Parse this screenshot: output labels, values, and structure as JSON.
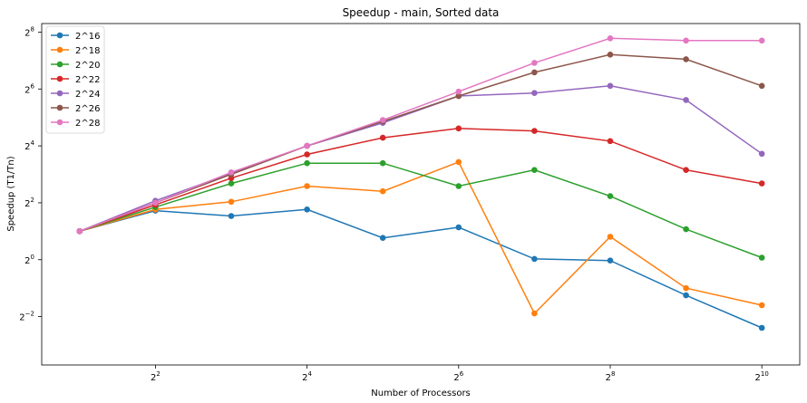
{
  "chart_data": {
    "type": "line",
    "title": "Speedup - main, Sorted data",
    "xlabel": "Number of Processors",
    "ylabel": "Speedup (T1/Tn)",
    "x_scale": "log2",
    "y_scale": "log2",
    "x": [
      2,
      4,
      8,
      16,
      32,
      64,
      128,
      256,
      512,
      1024
    ],
    "x_exponent_range": [
      0.5,
      10.5
    ],
    "y_exponent_range": [
      -3.7,
      8.3
    ],
    "x_ticks": [
      {
        "base": "2",
        "exp": "2",
        "value": 2
      },
      {
        "base": "2",
        "exp": "4",
        "value": 4
      },
      {
        "base": "2",
        "exp": "6",
        "value": 6
      },
      {
        "base": "2",
        "exp": "8",
        "value": 8
      },
      {
        "base": "2",
        "exp": "10",
        "value": 10
      }
    ],
    "y_ticks": [
      {
        "base": "2",
        "exp": "−2",
        "value": -2
      },
      {
        "base": "2",
        "exp": "0",
        "value": 0
      },
      {
        "base": "2",
        "exp": "2",
        "value": 2
      },
      {
        "base": "2",
        "exp": "4",
        "value": 4
      },
      {
        "base": "2",
        "exp": "6",
        "value": 6
      },
      {
        "base": "2",
        "exp": "8",
        "value": 8
      }
    ],
    "legend_position": "top-left",
    "series": [
      {
        "name": "2^16",
        "color": "#1f77b4",
        "values": [
          2.0,
          3.3,
          2.9,
          3.4,
          1.7,
          2.2,
          1.02,
          0.98,
          0.42,
          0.19
        ]
      },
      {
        "name": "2^18",
        "color": "#ff7f0e",
        "values": [
          2.0,
          3.4,
          4.1,
          6.0,
          5.3,
          10.8,
          0.27,
          1.75,
          0.5,
          0.33
        ]
      },
      {
        "name": "2^20",
        "color": "#2ca02c",
        "values": [
          2.0,
          3.6,
          6.4,
          10.5,
          10.5,
          6.0,
          8.9,
          4.7,
          2.1,
          1.05
        ]
      },
      {
        "name": "2^22",
        "color": "#d62728",
        "values": [
          2.0,
          3.8,
          7.3,
          13.0,
          19.5,
          24.5,
          23.0,
          18.0,
          8.9,
          6.4
        ]
      },
      {
        "name": "2^24",
        "color": "#9467bd",
        "values": [
          2.0,
          4.2,
          8.2,
          16.0,
          28.0,
          54.0,
          58.0,
          69.0,
          49.0,
          13.2
        ]
      },
      {
        "name": "2^26",
        "color": "#8c564b",
        "values": [
          2.0,
          4.0,
          8.0,
          16.0,
          29.0,
          54.0,
          96.0,
          148.0,
          132.0,
          69.0
        ]
      },
      {
        "name": "2^28",
        "color": "#e377c2",
        "values": [
          2.0,
          4.0,
          8.4,
          16.0,
          30.0,
          60.0,
          121.0,
          220.0,
          208.0,
          208.0
        ]
      }
    ]
  }
}
